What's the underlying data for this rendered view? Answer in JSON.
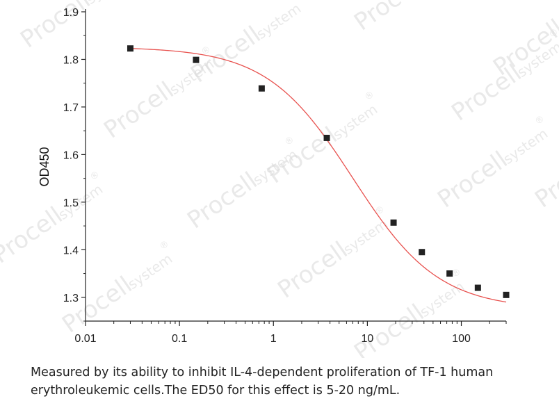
{
  "chart_data": {
    "type": "scatter",
    "title": "",
    "xlabel": "",
    "ylabel": "OD450",
    "x_scale": "log",
    "xlim": [
      0.01,
      300
    ],
    "ylim": [
      1.25,
      1.9
    ],
    "x_ticks": [
      0.01,
      0.1,
      1,
      10,
      100
    ],
    "x_tick_labels": [
      "0.01",
      "0.1",
      "1",
      "10",
      "100"
    ],
    "y_ticks": [
      1.3,
      1.4,
      1.5,
      1.6,
      1.7,
      1.8,
      1.9
    ],
    "y_tick_labels": [
      "1.3",
      "1.4",
      "1.5",
      "1.6",
      "1.7",
      "1.8",
      "1.9"
    ],
    "grid": false,
    "marker_color": "#222222",
    "fit_color": "#e8524f",
    "series": [
      {
        "x": [
          0.03,
          0.15,
          0.75,
          3.7,
          19,
          38,
          75,
          150,
          300
        ],
        "y": [
          1.823,
          1.799,
          1.739,
          1.635,
          1.457,
          1.395,
          1.35,
          1.32,
          1.305
        ],
        "fit": "4PL"
      }
    ]
  },
  "watermark": {
    "brand": "Procell",
    "sub": "system",
    "mark": "®"
  },
  "caption": {
    "line1": "Measured by its ability to inhibit IL-4-dependent proliferation of TF-1 human",
    "line2": "erythroleukemic cells.The ED50 for this effect is 5-20 ng/mL."
  }
}
